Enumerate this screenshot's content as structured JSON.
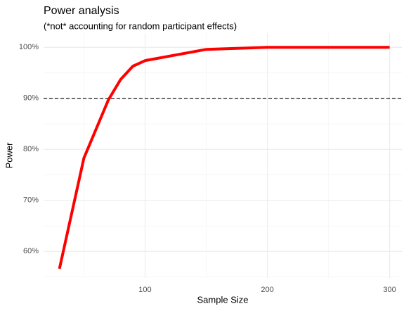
{
  "chart_data": {
    "type": "line",
    "title": "Power analysis",
    "subtitle": "(*not* accounting for random participant effects)",
    "x_label": "Sample Size",
    "y_label": "Power",
    "x": [
      30,
      50,
      70,
      80,
      90,
      100,
      150,
      200,
      250,
      300
    ],
    "series": [
      {
        "name": "Power",
        "color": "#ff0000",
        "values": [
          56.6,
          78.3,
          89.7,
          93.7,
          96.3,
          97.4,
          99.6,
          100,
          100,
          100
        ]
      }
    ],
    "xlim": [
      17,
      310
    ],
    "ylim": [
      54.8,
      102.8
    ],
    "xticks": [
      100,
      200,
      300
    ],
    "xminor_ticks": [
      50,
      150,
      250
    ],
    "yticks": [
      {
        "value": 60,
        "label": "60%"
      },
      {
        "value": 70,
        "label": "70%"
      },
      {
        "value": 80,
        "label": "80%"
      },
      {
        "value": 90,
        "label": "90%"
      },
      {
        "value": 100,
        "label": "100%"
      }
    ],
    "yminor_ticks": [
      55,
      65,
      75,
      85,
      95
    ],
    "hline": 90,
    "grid": true
  }
}
